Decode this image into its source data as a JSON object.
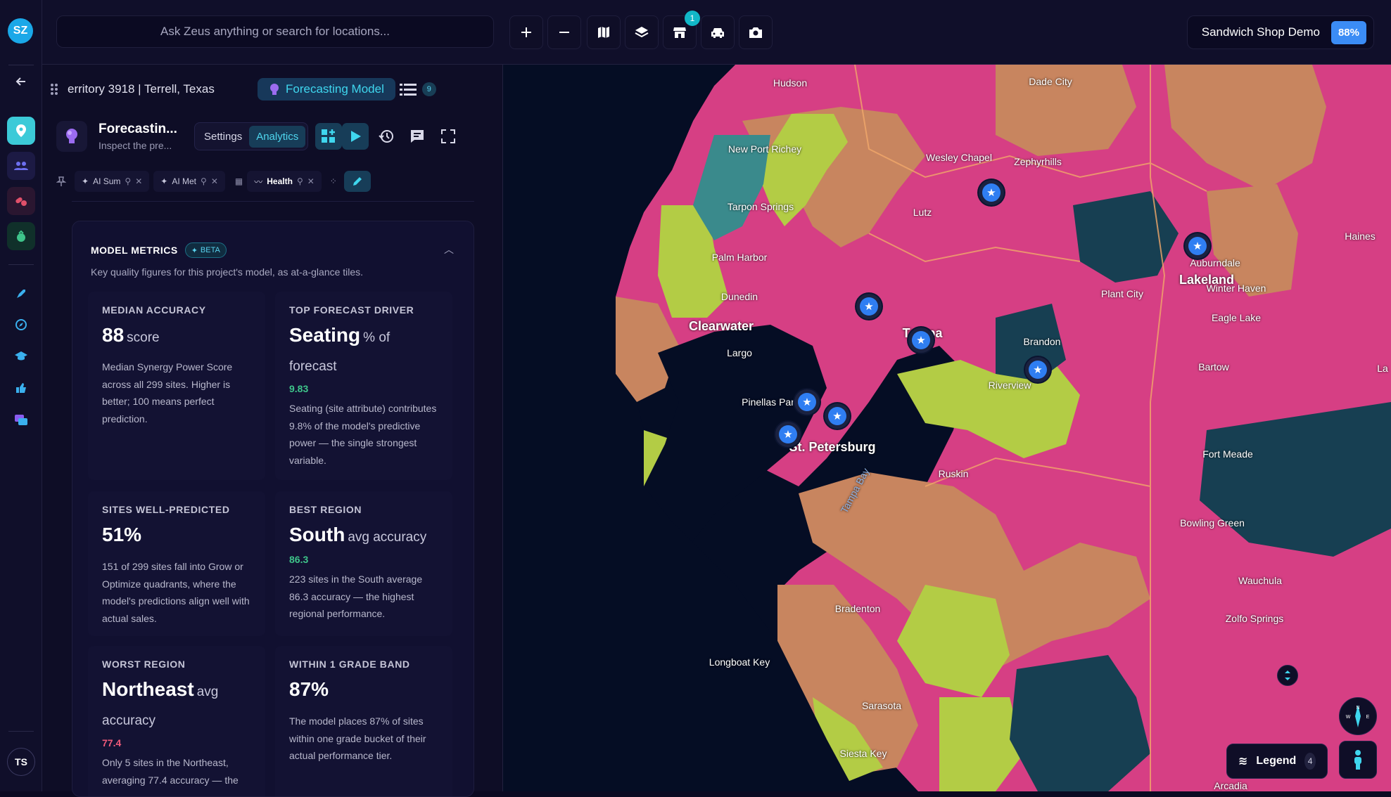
{
  "app": {
    "logo_text": "SZ",
    "user_initials": "TS"
  },
  "rail": {
    "icons": [
      "back-arrow-icon",
      "location-pin-icon",
      "people-icon",
      "pills-icon",
      "bag-icon",
      "rocket-icon",
      "compass-icon",
      "graduation-cap-icon",
      "thumbs-up-icon",
      "chat-icon"
    ]
  },
  "topbar": {
    "search_placeholder": "Ask Zeus anything or search for locations...",
    "tools": [
      "plus-icon",
      "minus-icon",
      "map-icon",
      "layers-icon",
      "store-icon",
      "car-icon",
      "camera-icon"
    ],
    "store_badge": "1",
    "project_name": "Sandwich Shop Demo",
    "project_score": "88%"
  },
  "panel": {
    "title": "erritory 3918 | Terrell, Texas",
    "forecast_tag": "Forecasting Model",
    "list_count": "9",
    "subtitle_main": "Forecastin...",
    "subtitle_sub": "Inspect the pre...",
    "tabs": [
      "Settings",
      "Analytics"
    ],
    "active_tab": "Analytics",
    "chips": [
      {
        "label": "AI Sum"
      },
      {
        "label": "AI Met"
      },
      {
        "label": "Health"
      }
    ]
  },
  "metrics": {
    "title": "MODEL METRICS",
    "beta": "BETA",
    "description": "Key quality figures for this project's model, as at-a-glance tiles.",
    "tiles": [
      {
        "label": "MEDIAN ACCURACY",
        "value": "88",
        "unit": "score",
        "sub": "",
        "desc": "Median Synergy Power Score across all 299 sites. Higher is better; 100 means perfect prediction."
      },
      {
        "label": "TOP FORECAST DRIVER",
        "value": "Seating",
        "unit": "% of forecast",
        "sub": "9.83",
        "desc": "Seating (site attribute) contributes 9.8% of the model's predictive power — the single strongest variable."
      },
      {
        "label": "SITES WELL-PREDICTED",
        "value": "51%",
        "unit": "",
        "sub": "",
        "desc": "151 of 299 sites fall into Grow or Optimize quadrants, where the model's predictions align well with actual sales."
      },
      {
        "label": "BEST REGION",
        "value": "South",
        "unit": "avg accuracy",
        "sub": "86.3",
        "desc": "223 sites in the South average 86.3 accuracy — the highest regional performance."
      },
      {
        "label": "WORST REGION",
        "value": "Northeast",
        "unit": "avg accuracy",
        "sub": "77.4",
        "desc": "Only 5 sites in the Northeast, averaging 77.4 accuracy — the"
      },
      {
        "label": "WITHIN 1 GRADE BAND",
        "value": "87%",
        "unit": "",
        "sub": "",
        "desc": "The model places 87% of sites within one grade bucket of their actual performance tier."
      }
    ]
  },
  "map": {
    "places": [
      {
        "name": "Hudson"
      },
      {
        "name": "Dade City"
      },
      {
        "name": "New Port Richey"
      },
      {
        "name": "Wesley Chapel"
      },
      {
        "name": "Zephyrhills"
      },
      {
        "name": "Tarpon Springs"
      },
      {
        "name": "Lutz"
      },
      {
        "name": "Palm Harbor"
      },
      {
        "name": "Haines"
      },
      {
        "name": "Auburndale"
      },
      {
        "name": "Dunedin"
      },
      {
        "name": "Plant City"
      },
      {
        "name": "Lakeland"
      },
      {
        "name": "Winter Haven"
      },
      {
        "name": "Eagle Lake"
      },
      {
        "name": "Clearwater"
      },
      {
        "name": "Tampa"
      },
      {
        "name": "Brandon"
      },
      {
        "name": "Largo"
      },
      {
        "name": "Bartow"
      },
      {
        "name": "Riverview"
      },
      {
        "name": "Pinellas Park"
      },
      {
        "name": "St. Petersburg"
      },
      {
        "name": "Fort Meade"
      },
      {
        "name": "Ruskin"
      },
      {
        "name": "Tampa Bay"
      },
      {
        "name": "Bowling Green"
      },
      {
        "name": "Wauchula"
      },
      {
        "name": "Bradenton"
      },
      {
        "name": "Zolfo Springs"
      },
      {
        "name": "Longboat Key"
      },
      {
        "name": "Sarasota"
      },
      {
        "name": "Siesta Key"
      },
      {
        "name": "Arcadia"
      },
      {
        "name": "La"
      }
    ],
    "legend_label": "Legend",
    "legend_count": "4",
    "colors": {
      "pink": "#d63f84",
      "orange": "#c8855f",
      "lime": "#b3cc45",
      "teal": "#173f52",
      "water": "#050d24"
    }
  }
}
